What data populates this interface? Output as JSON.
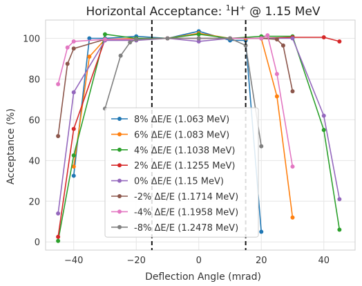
{
  "chart_data": {
    "type": "line",
    "title": "Horizontal Acceptance: ",
    "title_sup": "1",
    "title_tail": "H",
    "title_sup2": "+",
    "title_rest": " @ 1.15 MeV",
    "xlabel": "Deflection Angle (mrad)",
    "ylabel": "Acceptance (%)",
    "xlim": [
      -49,
      50
    ],
    "ylim": [
      -4,
      109
    ],
    "xticks": [
      -40,
      -20,
      0,
      20,
      40
    ],
    "yticks": [
      0,
      20,
      40,
      60,
      80,
      100
    ],
    "grid": true,
    "legend_position": "center",
    "vlines": [
      -15,
      15
    ],
    "series": [
      {
        "name": "8% ΔE/E (1.063 MeV)",
        "color": "#1f77b4",
        "points": [
          [
            -40,
            32.5
          ],
          [
            -35,
            100
          ],
          [
            -30,
            100
          ],
          [
            -20,
            101
          ],
          [
            -10,
            100
          ],
          [
            0,
            103.5
          ],
          [
            10,
            99
          ],
          [
            15,
            99
          ],
          [
            20,
            5
          ]
        ]
      },
      {
        "name": "6% ΔE/E (1.083 MeV)",
        "color": "#ff7f0e",
        "points": [
          [
            -40,
            37
          ],
          [
            -35,
            91
          ],
          [
            -30,
            99.5
          ],
          [
            -20,
            100
          ],
          [
            -10,
            100
          ],
          [
            0,
            102.5
          ],
          [
            10,
            100
          ],
          [
            15,
            100
          ],
          [
            20,
            100
          ],
          [
            25,
            71.5
          ],
          [
            30,
            12
          ]
        ]
      },
      {
        "name": "4% ΔE/E (1.1038 MeV)",
        "color": "#2ca02c",
        "points": [
          [
            -45,
            0.5
          ],
          [
            -40,
            42.5
          ],
          [
            -30,
            102
          ],
          [
            -20,
            100
          ],
          [
            -10,
            100
          ],
          [
            0,
            102
          ],
          [
            10,
            100
          ],
          [
            20,
            101
          ],
          [
            30,
            101
          ],
          [
            40,
            55
          ],
          [
            45,
            6
          ]
        ]
      },
      {
        "name": "2% ΔE/E (1.1255 MeV)",
        "color": "#d62728",
        "points": [
          [
            -45,
            2.5
          ],
          [
            -40,
            55.5
          ],
          [
            -30,
            99.5
          ],
          [
            -20,
            99.5
          ],
          [
            -10,
            100
          ],
          [
            0,
            100
          ],
          [
            10,
            100
          ],
          [
            20,
            100
          ],
          [
            30,
            100.5
          ],
          [
            40,
            100.5
          ],
          [
            45,
            98.5
          ]
        ]
      },
      {
        "name": "0% ΔE/E (1.15 MeV)",
        "color": "#9467bd",
        "points": [
          [
            -45,
            14
          ],
          [
            -40,
            73.5
          ],
          [
            -30,
            99
          ],
          [
            -20,
            99
          ],
          [
            -10,
            100
          ],
          [
            0,
            98.5
          ],
          [
            10,
            100
          ],
          [
            20,
            100
          ],
          [
            30,
            100
          ],
          [
            40,
            62
          ],
          [
            45,
            21
          ]
        ]
      },
      {
        "name": "-2% ΔE/E (1.1714 MeV)",
        "color": "#8c564b",
        "points": [
          [
            -45,
            52
          ],
          [
            -42,
            87.5
          ],
          [
            -40,
            95
          ],
          [
            -30,
            99.5
          ],
          [
            -20,
            99.5
          ],
          [
            -10,
            100
          ],
          [
            0,
            100
          ],
          [
            10,
            100
          ],
          [
            20,
            100
          ],
          [
            25,
            99.5
          ],
          [
            27,
            96.5
          ],
          [
            30,
            74
          ]
        ]
      },
      {
        "name": "-4% ΔE/E (1.1958 MeV)",
        "color": "#e377c2",
        "points": [
          [
            -45,
            77.5
          ],
          [
            -42,
            95.5
          ],
          [
            -40,
            98.5
          ],
          [
            -30,
            99.5
          ],
          [
            -20,
            99.5
          ],
          [
            -10,
            100
          ],
          [
            0,
            100
          ],
          [
            10,
            100
          ],
          [
            20,
            100
          ],
          [
            22,
            101.5
          ],
          [
            25,
            82.5
          ],
          [
            30,
            37
          ]
        ]
      },
      {
        "name": "-8% ΔE/E (1.2478 MeV)",
        "color": "#7f7f7f",
        "points": [
          [
            -30,
            65.5
          ],
          [
            -25,
            91.5
          ],
          [
            -22,
            98
          ],
          [
            -20,
            99.5
          ],
          [
            -10,
            100
          ],
          [
            0,
            100
          ],
          [
            10,
            100
          ],
          [
            15,
            96.5
          ],
          [
            20,
            47
          ]
        ]
      }
    ]
  }
}
